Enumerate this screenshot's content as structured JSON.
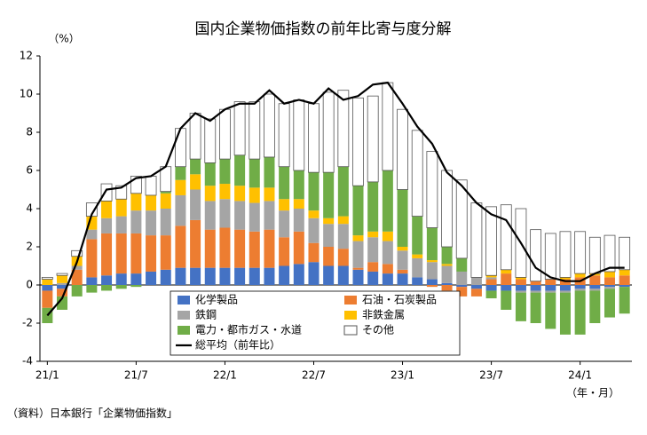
{
  "chart_data": {
    "type": "bar",
    "stacked": true,
    "title": "国内企業物価指数の前年比寄与度分解",
    "y_label": "（%）",
    "x_label": "（年・月）",
    "source": "（資料）日本銀行「企業物価指数」",
    "categories": [
      "21/1",
      null,
      null,
      null,
      null,
      null,
      "21/7",
      null,
      null,
      null,
      null,
      null,
      "22/1",
      null,
      null,
      null,
      null,
      null,
      "22/7",
      null,
      null,
      null,
      null,
      null,
      "23/1",
      null,
      null,
      null,
      null,
      null,
      "23/7",
      null,
      null,
      null,
      null,
      null,
      "24/1",
      null,
      null,
      null
    ],
    "ylim": [
      -4,
      12
    ],
    "yticks": [
      12,
      10,
      8,
      6,
      4,
      2,
      0,
      -2,
      -4
    ],
    "series": [
      {
        "name": "化学製品",
        "color": "#4472c4",
        "values": [
          -0.3,
          -0.2,
          0.0,
          0.4,
          0.5,
          0.6,
          0.6,
          0.7,
          0.8,
          0.9,
          0.9,
          0.9,
          0.9,
          0.9,
          0.9,
          0.9,
          1.0,
          1.1,
          1.2,
          1.0,
          1.0,
          0.8,
          0.7,
          0.6,
          0.6,
          0.4,
          0.3,
          0.1,
          -0.1,
          -0.2,
          -0.3,
          -0.3,
          -0.3,
          -0.3,
          -0.3,
          -0.3,
          -0.2,
          -0.2,
          -0.1,
          -0.1
        ]
      },
      {
        "name": "石油・石炭製品",
        "color": "#ed7d31",
        "values": [
          -0.9,
          -0.4,
          0.8,
          2.0,
          2.2,
          2.1,
          2.1,
          1.9,
          1.8,
          2.2,
          2.5,
          2.0,
          2.1,
          2.0,
          1.9,
          2.0,
          1.5,
          1.7,
          1.0,
          1.0,
          0.9,
          0.1,
          0.5,
          0.5,
          0.2,
          0.0,
          -0.1,
          -0.3,
          -0.5,
          -0.4,
          0.3,
          0.6,
          0.3,
          0.2,
          0.3,
          0.3,
          0.4,
          0.5,
          0.4,
          0.5
        ]
      },
      {
        "name": "鉄鋼",
        "color": "#a5a5a5",
        "values": [
          0.0,
          0.1,
          0.2,
          0.5,
          0.8,
          0.9,
          1.2,
          1.3,
          1.4,
          1.6,
          1.6,
          1.5,
          1.5,
          1.5,
          1.5,
          1.5,
          1.4,
          1.2,
          1.3,
          1.2,
          1.3,
          1.4,
          1.3,
          1.2,
          1.0,
          1.0,
          0.9,
          0.9,
          0.7,
          0.4,
          0.1,
          0.0,
          -0.1,
          -0.1,
          -0.1,
          -0.1,
          -0.1,
          -0.1,
          -0.1,
          0.0
        ]
      },
      {
        "name": "非鉄金属",
        "color": "#ffc000",
        "values": [
          0.3,
          0.4,
          0.5,
          0.7,
          0.9,
          0.9,
          0.9,
          0.8,
          0.8,
          0.8,
          0.8,
          0.8,
          0.8,
          0.8,
          0.8,
          0.7,
          0.6,
          0.5,
          0.4,
          0.3,
          0.4,
          0.3,
          0.3,
          0.5,
          0.2,
          0.2,
          0.1,
          0.1,
          0.0,
          0.0,
          0.1,
          0.2,
          0.1,
          0.0,
          0.0,
          0.1,
          0.2,
          0.1,
          0.3,
          0.3
        ]
      },
      {
        "name": "電力・都市ガス・水道",
        "color": "#70ad47",
        "values": [
          -0.8,
          -0.7,
          -0.6,
          -0.4,
          -0.3,
          -0.2,
          -0.1,
          0.0,
          0.1,
          0.7,
          0.8,
          1.2,
          1.3,
          1.6,
          1.5,
          1.6,
          1.7,
          1.5,
          2.0,
          2.4,
          2.6,
          2.6,
          2.6,
          3.2,
          3.0,
          2.0,
          1.7,
          0.9,
          0.7,
          0.0,
          -0.4,
          -1.0,
          -1.5,
          -1.6,
          -1.9,
          -2.2,
          -2.3,
          -1.7,
          -1.5,
          -1.4
        ]
      },
      {
        "name": "その他",
        "color": "#ffffff",
        "values": [
          0.1,
          0.1,
          0.3,
          0.7,
          0.9,
          0.7,
          0.9,
          1.0,
          1.3,
          2.0,
          2.4,
          2.3,
          2.6,
          2.8,
          3.0,
          3.3,
          3.3,
          3.7,
          3.6,
          4.2,
          4.0,
          4.6,
          4.5,
          4.6,
          4.2,
          4.5,
          4.0,
          4.0,
          4.1,
          3.9,
          3.6,
          3.4,
          3.6,
          2.7,
          2.4,
          2.4,
          2.2,
          1.9,
          1.9,
          1.7
        ]
      }
    ],
    "line": {
      "name": "総平均（前年比）",
      "color": "#000000",
      "values": [
        -1.6,
        -0.7,
        1.2,
        3.7,
        5.0,
        5.1,
        5.6,
        5.7,
        6.2,
        8.2,
        9.0,
        8.6,
        9.2,
        9.5,
        9.5,
        10.2,
        9.5,
        9.7,
        9.5,
        10.3,
        9.7,
        9.9,
        10.5,
        10.6,
        9.5,
        8.3,
        7.4,
        5.9,
        5.2,
        4.3,
        3.7,
        3.4,
        2.2,
        0.9,
        0.4,
        0.2,
        0.2,
        0.6,
        0.9,
        0.9
      ]
    }
  }
}
